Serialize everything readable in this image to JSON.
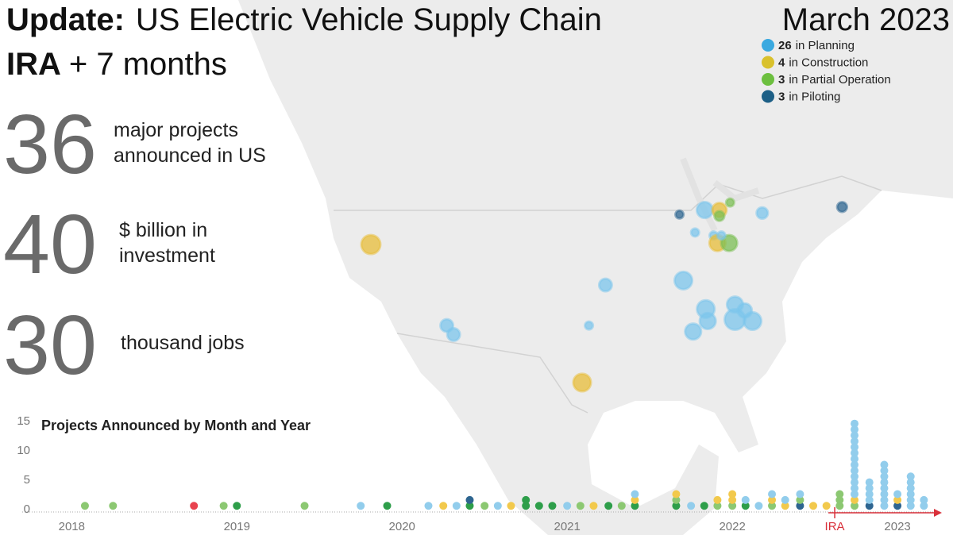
{
  "header": {
    "title_bold": "Update:",
    "title_rest": "US Electric Vehicle Supply Chain",
    "subtitle_bold": "IRA",
    "subtitle_rest": "+ 7 months",
    "date": "March 2023"
  },
  "legend": [
    {
      "count": 26,
      "label": "in Planning",
      "color": "#3aa9e0"
    },
    {
      "count": 4,
      "label": "in Construction",
      "color": "#d9c12c"
    },
    {
      "count": 3,
      "label": "in Partial Operation",
      "color": "#6cbf3f"
    },
    {
      "count": 3,
      "label": "in Piloting",
      "color": "#1d5f86"
    }
  ],
  "stats": [
    {
      "value": 36,
      "lines": [
        "major projects",
        "announced in US"
      ]
    },
    {
      "value": 40,
      "lines": [
        "$ billion in",
        "investment"
      ]
    },
    {
      "value": 30,
      "lines": [
        "thousand jobs"
      ]
    }
  ],
  "map": {
    "points": [
      {
        "lon": -119.8,
        "lat": 39.5,
        "investment_billion": 3.4,
        "color": "#e8bd3a"
      },
      {
        "lon": -112.0,
        "lat": 34.1,
        "investment_billion": 1.5,
        "color": "#7cc6ec"
      },
      {
        "lon": -111.3,
        "lat": 33.5,
        "investment_billion": 1.5,
        "color": "#7cc6ec"
      },
      {
        "lon": -98.1,
        "lat": 30.3,
        "investment_billion": 2.9,
        "color": "#e8bd3a"
      },
      {
        "lon": -97.4,
        "lat": 34.1,
        "investment_billion": 0.6,
        "color": "#7cc6ec"
      },
      {
        "lon": -95.7,
        "lat": 36.8,
        "investment_billion": 1.5,
        "color": "#7cc6ec"
      },
      {
        "lon": -88.1,
        "lat": 41.5,
        "investment_billion": 0.6,
        "color": "#2e6590"
      },
      {
        "lon": -85.5,
        "lat": 41.8,
        "investment_billion": 2.4,
        "color": "#7cc6ec"
      },
      {
        "lon": -84.0,
        "lat": 41.8,
        "investment_billion": 1.9,
        "color": "#e8bd3a"
      },
      {
        "lon": -84.0,
        "lat": 41.4,
        "investment_billion": 0.9,
        "color": "#7cbf55"
      },
      {
        "lon": -82.9,
        "lat": 42.3,
        "investment_billion": 0.6,
        "color": "#7cbf55"
      },
      {
        "lon": -86.5,
        "lat": 40.3,
        "investment_billion": 0.6,
        "color": "#7cc6ec"
      },
      {
        "lon": -84.6,
        "lat": 40.1,
        "investment_billion": 0.6,
        "color": "#7cc6ec"
      },
      {
        "lon": -84.2,
        "lat": 39.6,
        "investment_billion": 2.4,
        "color": "#e8bd3a"
      },
      {
        "lon": -83.0,
        "lat": 39.6,
        "investment_billion": 2.4,
        "color": "#7cbf55"
      },
      {
        "lon": -79.6,
        "lat": 41.6,
        "investment_billion": 1.2,
        "color": "#7cc6ec"
      },
      {
        "lon": -71.4,
        "lat": 42.0,
        "investment_billion": 0.9,
        "color": "#2e6590"
      },
      {
        "lon": -87.7,
        "lat": 37.1,
        "investment_billion": 2.9,
        "color": "#7cc6ec"
      },
      {
        "lon": -85.4,
        "lat": 35.2,
        "investment_billion": 2.9,
        "color": "#7cc6ec"
      },
      {
        "lon": -85.2,
        "lat": 34.4,
        "investment_billion": 2.4,
        "color": "#7cc6ec"
      },
      {
        "lon": -86.7,
        "lat": 33.7,
        "investment_billion": 2.4,
        "color": "#7cc6ec"
      },
      {
        "lon": -82.4,
        "lat": 35.5,
        "investment_billion": 2.4,
        "color": "#7cc6ec"
      },
      {
        "lon": -81.4,
        "lat": 35.1,
        "investment_billion": 1.9,
        "color": "#7cc6ec"
      },
      {
        "lon": -82.4,
        "lat": 34.5,
        "investment_billion": 4.0,
        "color": "#7cc6ec"
      },
      {
        "lon": -80.6,
        "lat": 34.4,
        "investment_billion": 2.9,
        "color": "#7cc6ec"
      },
      {
        "lon": -83.8,
        "lat": 40.1,
        "investment_billion": 0.6,
        "color": "#7cc6ec"
      }
    ]
  },
  "chart_data": {
    "type": "dot-column",
    "title": "Projects Announced by Month and Year",
    "x": [
      2018.08,
      2018.25,
      2018.74,
      2018.92,
      2019.0,
      2019.41,
      2019.75,
      2019.91,
      2020.16,
      2020.25,
      2020.33,
      2020.41,
      2020.5,
      2020.58,
      2020.66,
      2020.75,
      2020.83,
      2020.91,
      2021.0,
      2021.08,
      2021.16,
      2021.25,
      2021.33,
      2021.41,
      2021.66,
      2021.75,
      2021.83,
      2021.91,
      2022.0,
      2022.08,
      2022.16,
      2022.24,
      2022.32,
      2022.41,
      2022.49,
      2022.57,
      2022.65,
      2022.74,
      2022.83,
      2022.92,
      2023.0,
      2023.08,
      2023.16
    ],
    "series": [
      {
        "color": "#2e9e4a",
        "values": [
          0,
          0,
          0,
          0,
          1,
          0,
          0,
          1,
          0,
          0,
          0,
          1,
          0,
          0,
          0,
          2,
          1,
          1,
          0,
          0,
          0,
          1,
          0,
          1,
          1,
          0,
          1,
          0,
          0,
          1,
          0,
          0,
          0,
          0,
          0,
          0,
          0,
          0,
          0,
          0,
          0,
          0,
          0
        ]
      },
      {
        "color": "#e8434f",
        "values": [
          0,
          0,
          1,
          0,
          0,
          0,
          0,
          0,
          0,
          0,
          0,
          0,
          0,
          0,
          0,
          0,
          0,
          0,
          0,
          0,
          0,
          0,
          0,
          0,
          0,
          0,
          0,
          0,
          0,
          0,
          0,
          0,
          0,
          0,
          0,
          0,
          0,
          0,
          0,
          0,
          0,
          0,
          0
        ]
      },
      {
        "color": "#2e6590",
        "values": [
          0,
          0,
          0,
          0,
          0,
          0,
          0,
          0,
          0,
          0,
          0,
          1,
          0,
          0,
          0,
          0,
          0,
          0,
          0,
          0,
          0,
          0,
          0,
          0,
          0,
          0,
          0,
          0,
          0,
          0,
          0,
          0,
          0,
          1,
          0,
          0,
          0,
          0,
          1,
          0,
          1,
          0,
          0
        ]
      },
      {
        "color": "#8cc872",
        "values": [
          1,
          1,
          0,
          1,
          0,
          1,
          0,
          0,
          0,
          0,
          0,
          0,
          1,
          0,
          0,
          0,
          0,
          0,
          0,
          1,
          0,
          0,
          1,
          0,
          1,
          0,
          0,
          1,
          1,
          0,
          0,
          1,
          0,
          1,
          0,
          0,
          3,
          1,
          0,
          0,
          0,
          0,
          0
        ]
      },
      {
        "color": "#f2c94c",
        "values": [
          0,
          0,
          0,
          0,
          0,
          0,
          0,
          0,
          0,
          1,
          0,
          0,
          0,
          0,
          1,
          0,
          0,
          0,
          0,
          0,
          1,
          0,
          0,
          1,
          1,
          0,
          0,
          1,
          2,
          0,
          0,
          1,
          1,
          0,
          1,
          1,
          0,
          1,
          0,
          0,
          1,
          0,
          0
        ]
      },
      {
        "color": "#92cdec",
        "values": [
          0,
          0,
          0,
          0,
          0,
          0,
          1,
          0,
          1,
          0,
          1,
          0,
          0,
          1,
          0,
          0,
          0,
          0,
          1,
          0,
          0,
          0,
          0,
          1,
          0,
          1,
          0,
          0,
          0,
          1,
          1,
          1,
          1,
          1,
          0,
          0,
          0,
          13,
          4,
          8,
          1,
          6,
          2
        ]
      }
    ],
    "xlim": [
      2017.71,
      2023.24
    ],
    "xticks": [
      2018,
      2019,
      2020,
      2021,
      2022,
      2023
    ],
    "ylim": [
      -0.95,
      16.35
    ],
    "yticks": [
      0,
      5,
      10,
      15
    ],
    "annotation": {
      "text": "IRA",
      "x": 2022.62,
      "color": "#d9303a"
    }
  }
}
